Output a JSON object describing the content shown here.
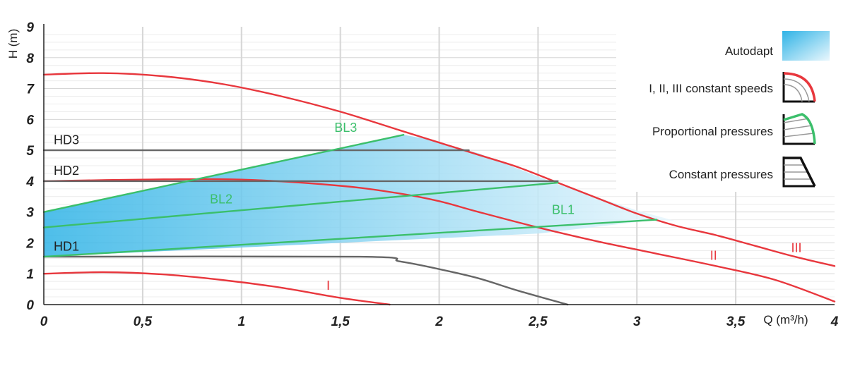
{
  "chart_data": {
    "type": "line",
    "xlabel": "Q (m³/h)",
    "ylabel": "H (m)",
    "xlim": [
      0,
      4
    ],
    "ylim": [
      0,
      9
    ],
    "grid": true,
    "x_ticks": [
      "0",
      "0,5",
      "1",
      "1,5",
      "2",
      "2,5",
      "3",
      "3,5",
      "4"
    ],
    "y_ticks": [
      "0",
      "1",
      "2",
      "3",
      "4",
      "5",
      "6",
      "7",
      "8",
      "9"
    ],
    "legend": {
      "placement": "top-right",
      "items": [
        {
          "text": "Autodapt",
          "icon": "autodapt-swatch-icon"
        },
        {
          "text": "I, II, III constant speeds",
          "icon": "constant-speed-curve-icon"
        },
        {
          "text": "Proportional pressures",
          "icon": "proportional-pressure-curve-icon"
        },
        {
          "text": "Constant pressures",
          "icon": "constant-pressure-curve-icon"
        }
      ]
    },
    "colors": {
      "speed_curves": "#e8373d",
      "proportional": "#3bbf6b",
      "constant_pressure": "#666666",
      "autodapt_fill_start": "#2fb3e6",
      "autodapt_fill_end": "#eaf7fd",
      "grid": "#d6d6d6"
    },
    "autodapt_region": {
      "x": [
        0,
        1.82,
        1.95,
        2.2,
        2.6,
        3.0,
        3.2,
        3.1,
        2.5,
        0
      ],
      "y": [
        3.0,
        5.5,
        5.35,
        4.9,
        3.9,
        3.05,
        2.7,
        2.75,
        2.3,
        1.55
      ]
    },
    "series": [
      {
        "name": "III",
        "group": "constant speed",
        "x": [
          0,
          0.3,
          0.6,
          0.9,
          1.2,
          1.5,
          1.8,
          2.0,
          2.2,
          2.4,
          2.6,
          2.8,
          3.0,
          3.2,
          3.4,
          3.6,
          3.8,
          4.0
        ],
        "y": [
          7.45,
          7.5,
          7.4,
          7.15,
          6.75,
          6.25,
          5.65,
          5.25,
          4.85,
          4.45,
          3.95,
          3.45,
          2.95,
          2.55,
          2.25,
          1.9,
          1.55,
          1.25
        ]
      },
      {
        "name": "II",
        "group": "constant speed",
        "x": [
          0,
          0.5,
          1.0,
          1.5,
          1.8,
          2.0,
          2.2,
          2.5,
          2.8,
          3.1,
          3.4,
          3.7,
          4.0
        ],
        "y": [
          4.0,
          4.05,
          4.05,
          3.85,
          3.6,
          3.35,
          3.0,
          2.5,
          2.05,
          1.65,
          1.25,
          0.8,
          0.1
        ]
      },
      {
        "name": "I",
        "group": "constant speed",
        "x": [
          0,
          0.3,
          0.6,
          0.9,
          1.2,
          1.5,
          1.75
        ],
        "y": [
          1.0,
          1.05,
          0.98,
          0.8,
          0.55,
          0.22,
          0.0
        ]
      },
      {
        "name": "HD3",
        "group": "constant pressure",
        "x": [
          0,
          2.15
        ],
        "y": [
          5.0,
          5.0
        ]
      },
      {
        "name": "HD2",
        "group": "constant pressure",
        "x": [
          0,
          2.6
        ],
        "y": [
          4.0,
          4.0
        ]
      },
      {
        "name": "HD1",
        "group": "constant pressure",
        "x": [
          0,
          1.6,
          1.8,
          2.0,
          2.2,
          2.4,
          2.65
        ],
        "y": [
          1.55,
          1.55,
          1.4,
          1.15,
          0.85,
          0.45,
          0.0
        ]
      },
      {
        "name": "BL3",
        "group": "proportional pressure",
        "x": [
          0,
          1.82
        ],
        "y": [
          3.0,
          5.5
        ]
      },
      {
        "name": "BL2",
        "group": "proportional pressure",
        "x": [
          0,
          2.6
        ],
        "y": [
          2.5,
          3.95
        ]
      },
      {
        "name": "BL1",
        "group": "proportional pressure",
        "x": [
          0,
          3.1
        ],
        "y": [
          1.55,
          2.75
        ]
      }
    ],
    "curve_labels": [
      {
        "text": "HD3",
        "x": 0.05,
        "y": 5.2,
        "color": "#222222"
      },
      {
        "text": "HD2",
        "x": 0.05,
        "y": 4.2,
        "color": "#222222"
      },
      {
        "text": "HD1",
        "x": 0.05,
        "y": 1.75,
        "color": "#222222"
      },
      {
        "text": "BL3",
        "x": 1.47,
        "y": 5.6,
        "color": "#3bbf6b"
      },
      {
        "text": "BL2",
        "x": 0.84,
        "y": 3.28,
        "color": "#3bbf6b"
      },
      {
        "text": "BL1",
        "x": 2.57,
        "y": 2.93,
        "color": "#3bbf6b"
      },
      {
        "text": "I",
        "x": 1.43,
        "y": 0.48,
        "color": "#e8373d"
      },
      {
        "text": "II",
        "x": 3.37,
        "y": 1.45,
        "color": "#e8373d"
      },
      {
        "text": "III",
        "x": 3.78,
        "y": 1.7,
        "color": "#e8373d"
      }
    ]
  }
}
